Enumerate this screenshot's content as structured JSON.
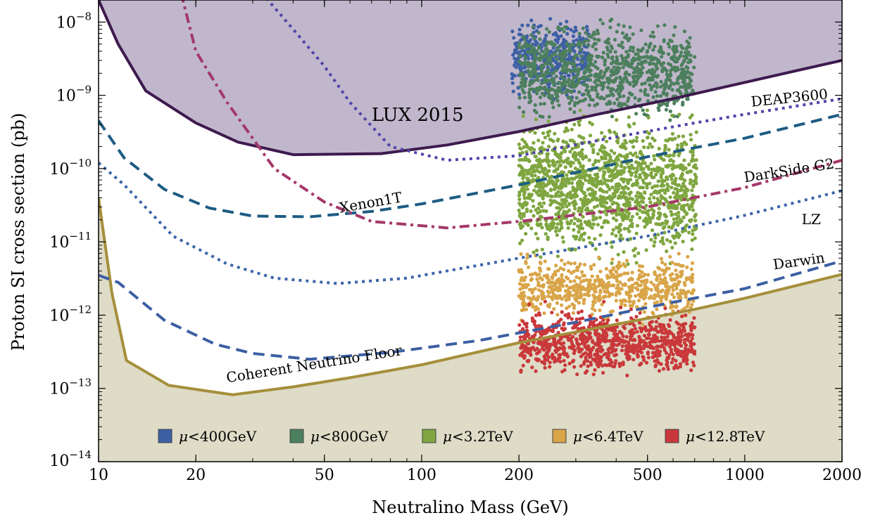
{
  "chart_data": {
    "type": "scatter",
    "xlabel": "Neutralino Mass (GeV)",
    "ylabel": "Proton SI cross section (pb)",
    "x_scale": "log",
    "y_scale": "log",
    "xlim": [
      10,
      2000
    ],
    "ylim": [
      1e-14,
      2e-08
    ],
    "x_ticks": [
      {
        "value": 10,
        "label": "10"
      },
      {
        "value": 20,
        "label": "20"
      },
      {
        "value": 50,
        "label": "50"
      },
      {
        "value": 100,
        "label": "100"
      },
      {
        "value": 200,
        "label": "200"
      },
      {
        "value": 500,
        "label": "500"
      },
      {
        "value": 1000,
        "label": "1000"
      },
      {
        "value": 2000,
        "label": "2000"
      }
    ],
    "y_ticks": [
      {
        "value": 1e-14,
        "base": "10",
        "exp": "−14"
      },
      {
        "value": 1e-13,
        "base": "10",
        "exp": "−13"
      },
      {
        "value": 1e-12,
        "base": "10",
        "exp": "−12"
      },
      {
        "value": 1e-11,
        "base": "10",
        "exp": "−11"
      },
      {
        "value": 1e-10,
        "base": "10",
        "exp": "−10"
      },
      {
        "value": 1e-09,
        "base": "10",
        "exp": "−9"
      },
      {
        "value": 1e-08,
        "base": "10",
        "exp": "−8"
      }
    ],
    "regions": [
      {
        "name": "LUX 2015",
        "label": "LUX 2015",
        "label_at": [
          70,
          4.5e-10
        ],
        "fill": "#c1b7cc",
        "stroke": "#3d1a4e",
        "points": [
          [
            10,
            2e-08
          ],
          [
            11.5,
            5e-09
          ],
          [
            14,
            1.15e-09
          ],
          [
            20,
            4.2e-10
          ],
          [
            27,
            2.3e-10
          ],
          [
            40,
            1.55e-10
          ],
          [
            75,
            1.6e-10
          ],
          [
            120,
            2.1e-10
          ],
          [
            200,
            3.2e-10
          ],
          [
            350,
            5.5e-10
          ],
          [
            600,
            9e-10
          ],
          [
            1000,
            1.5e-09
          ],
          [
            2000,
            3e-09
          ]
        ]
      },
      {
        "name": "Coherent Neutrino Floor",
        "label": "Coherent Neutrino Floor",
        "label_at": [
          25,
          1.2e-13
        ],
        "label_angle": -9,
        "fill": "#dedbc7",
        "stroke": "#a58f3b",
        "points": [
          [
            10,
            4e-11
          ],
          [
            11,
            2e-12
          ],
          [
            12.2,
            2.4e-13
          ],
          [
            16.5,
            1.1e-13
          ],
          [
            26,
            8.2e-14
          ],
          [
            40,
            1.05e-13
          ],
          [
            60,
            1.4e-13
          ],
          [
            100,
            2.1e-13
          ],
          [
            200,
            4.2e-13
          ],
          [
            400,
            7.5e-13
          ],
          [
            700,
            1.2e-12
          ],
          [
            1000,
            1.7e-12
          ],
          [
            2000,
            3.6e-12
          ]
        ]
      }
    ],
    "series": [
      {
        "name": "DEAP3600",
        "label_at": [
          1050,
          7e-10
        ],
        "label_angle": -6,
        "color": "#5045a8",
        "dash": "4 6",
        "width": 4,
        "points": [
          [
            32,
            2.5e-08
          ],
          [
            40,
            8e-09
          ],
          [
            50,
            2.5e-09
          ],
          [
            60,
            8e-10
          ],
          [
            80,
            2e-10
          ],
          [
            120,
            1.3e-10
          ],
          [
            200,
            1.5e-10
          ],
          [
            400,
            2.7e-10
          ],
          [
            700,
            4.2e-10
          ],
          [
            1000,
            5.5e-10
          ],
          [
            2000,
            9e-10
          ]
        ]
      },
      {
        "name": "Xenon1T",
        "label_at": [
          56,
          2.5e-11
        ],
        "label_angle": -10,
        "color": "#1d5c83",
        "dash": "16 9",
        "width": 4,
        "points": [
          [
            10,
            4.5e-10
          ],
          [
            12,
            1.4e-10
          ],
          [
            16,
            5.2e-11
          ],
          [
            22,
            2.9e-11
          ],
          [
            30,
            2.25e-11
          ],
          [
            45,
            2.2e-11
          ],
          [
            70,
            2.6e-11
          ],
          [
            100,
            3.3e-11
          ],
          [
            200,
            6e-11
          ],
          [
            500,
            1.45e-10
          ],
          [
            1000,
            2.6e-10
          ],
          [
            2000,
            5.5e-10
          ]
        ]
      },
      {
        "name": "DarkSide G2",
        "label_at": [
          1000,
          6.5e-11
        ],
        "label_angle": -9,
        "color": "#a4386a",
        "dash": "14 6 4 6",
        "width": 4,
        "points": [
          [
            18,
            2.5e-08
          ],
          [
            20,
            4e-09
          ],
          [
            25,
            8e-10
          ],
          [
            35,
            1e-10
          ],
          [
            50,
            3.5e-11
          ],
          [
            70,
            1.9e-11
          ],
          [
            120,
            1.55e-11
          ],
          [
            200,
            1.9e-11
          ],
          [
            500,
            3e-11
          ],
          [
            1000,
            5.5e-11
          ],
          [
            2000,
            1.3e-10
          ]
        ]
      },
      {
        "name": "LZ",
        "label_at": [
          1500,
          1.75e-11
        ],
        "label_angle": 0,
        "color": "#3d65a9",
        "dash": "4 6",
        "width": 4,
        "points": [
          [
            10,
            1.2e-10
          ],
          [
            12,
            6e-11
          ],
          [
            17,
            1.2e-11
          ],
          [
            25,
            5e-12
          ],
          [
            35,
            3.2e-12
          ],
          [
            55,
            2.7e-12
          ],
          [
            90,
            3.2e-12
          ],
          [
            200,
            6e-12
          ],
          [
            500,
            1.2e-11
          ],
          [
            1000,
            2.3e-11
          ],
          [
            2000,
            5e-11
          ]
        ]
      },
      {
        "name": "Darwin",
        "label_at": [
          1230,
          4.2e-12
        ],
        "label_angle": -8,
        "color": "#3c5fa3",
        "dash": "16 9",
        "width": 4,
        "points": [
          [
            10,
            3.5e-12
          ],
          [
            11.5,
            2.8e-12
          ],
          [
            16,
            8.5e-13
          ],
          [
            23,
            4e-13
          ],
          [
            30,
            3e-13
          ],
          [
            45,
            2.5e-13
          ],
          [
            80,
            3.1e-13
          ],
          [
            150,
            4.5e-13
          ],
          [
            300,
            8e-13
          ],
          [
            600,
            1.5e-12
          ],
          [
            1000,
            2.3e-12
          ],
          [
            2000,
            5.5e-12
          ]
        ]
      }
    ],
    "scatter_bands": [
      {
        "label": "μ<400GeV",
        "color": "#3d5fa5",
        "mlim": [
          190,
          330
        ],
        "ylim": [
          7e-10,
          1.5e-08
        ],
        "count": 380
      },
      {
        "label": "μ<800GeV",
        "color": "#4c7f5d",
        "mlim": [
          200,
          700
        ],
        "ylim": [
          3e-10,
          1.4e-08
        ],
        "count": 950
      },
      {
        "label": "μ<3.2TeV",
        "color": "#7fa640",
        "mlim": [
          200,
          710
        ],
        "ylim": [
          3.5e-12,
          9e-10
        ],
        "count": 1500
      },
      {
        "label": "μ<6.4TeV",
        "color": "#d9a548",
        "mlim": [
          200,
          700
        ],
        "ylim": [
          7e-13,
          8e-12
        ],
        "count": 650
      },
      {
        "label": "μ<12.8TeV",
        "color": "#c9383a",
        "mlim": [
          200,
          700
        ],
        "ylim": [
          1.2e-13,
          1.6e-12
        ],
        "count": 900
      }
    ],
    "legend": {
      "placement": "bottom-center",
      "items": [
        {
          "prefix": "μ",
          "text": "<400GeV",
          "color": "#3d5fa5"
        },
        {
          "prefix": "μ",
          "text": "<800GeV",
          "color": "#4c7f5d"
        },
        {
          "prefix": "μ",
          "text": "<3.2TeV",
          "color": "#7fa640"
        },
        {
          "prefix": "μ",
          "text": "<6.4TeV",
          "color": "#d9a548"
        },
        {
          "prefix": "μ",
          "text": "<12.8TeV",
          "color": "#c9383a"
        }
      ]
    },
    "grid": false
  }
}
